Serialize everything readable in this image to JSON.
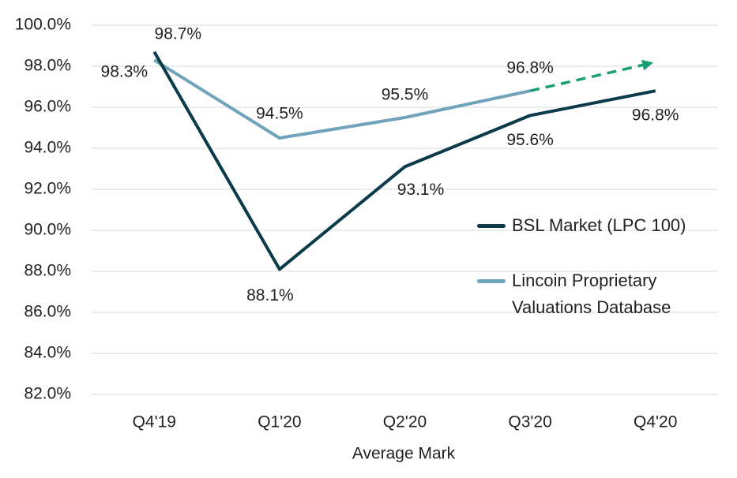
{
  "chart_data": {
    "type": "line",
    "x_label": "Average Mark",
    "categories": [
      "Q4'19",
      "Q1'20",
      "Q2'20",
      "Q3'20",
      "Q4'20"
    ],
    "series": [
      {
        "name": "BSL Market (LPC 100)",
        "color": "#0b3a4a",
        "values": [
          98.7,
          88.1,
          93.1,
          95.6,
          96.8
        ],
        "value_labels": [
          "98.7%",
          "88.1%",
          "93.1%",
          "95.6%",
          "96.8%"
        ]
      },
      {
        "name": "Lincoin Proprietary Valuations Database",
        "color": "#6fa3bc",
        "values": [
          98.3,
          94.5,
          95.5,
          96.8,
          98.2
        ],
        "value_labels": [
          "98.3%",
          "94.5%",
          "95.5%",
          "96.8%",
          null
        ],
        "dashed_from_index": 3,
        "dashed_color": "#1a9e77"
      }
    ],
    "ylim": [
      82,
      100
    ],
    "yticks": [
      {
        "value": 82,
        "label": "82.0%"
      },
      {
        "value": 84,
        "label": "84.0%"
      },
      {
        "value": 86,
        "label": "86.0%"
      },
      {
        "value": 88,
        "label": "88.0%"
      },
      {
        "value": 90,
        "label": "90.0%"
      },
      {
        "value": 92,
        "label": "92.0%"
      },
      {
        "value": 94,
        "label": "94.0%"
      },
      {
        "value": 96,
        "label": "96.0%"
      },
      {
        "value": 98,
        "label": "98.0%"
      },
      {
        "value": 100,
        "label": "100.0%"
      }
    ],
    "grid": true
  }
}
